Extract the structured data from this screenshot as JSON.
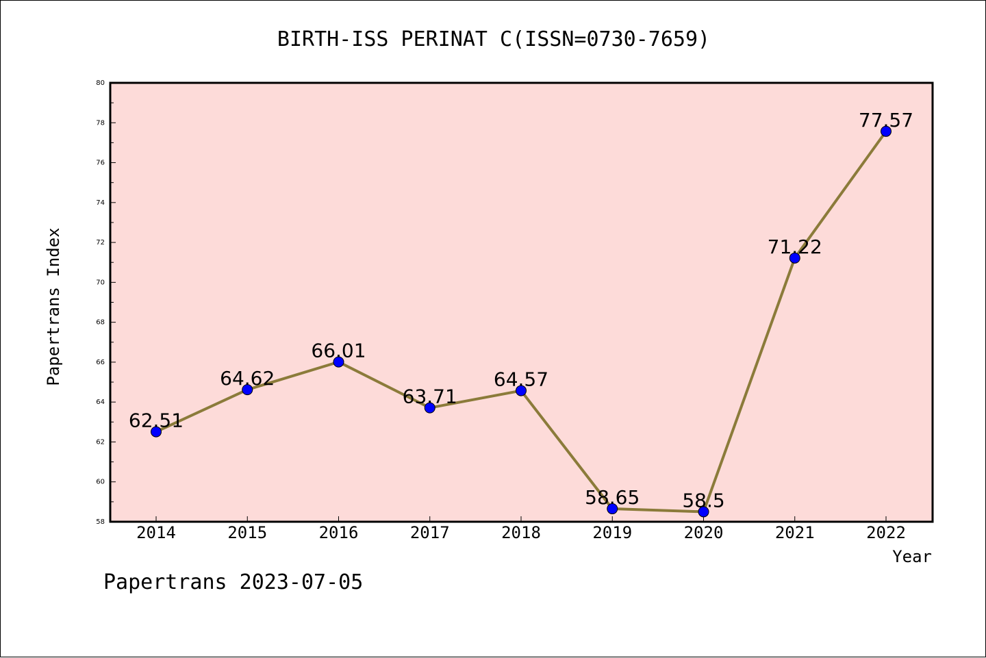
{
  "footer": "Papertrans 2023-07-05",
  "chart_data": {
    "type": "line",
    "title": "BIRTH-ISS PERINAT C(ISSN=0730-7659)",
    "xlabel": "Year",
    "ylabel": "Papertrans Index",
    "categories": [
      "2014",
      "2015",
      "2016",
      "2017",
      "2018",
      "2019",
      "2020",
      "2021",
      "2022"
    ],
    "series": [
      {
        "values": [
          62.51,
          64.62,
          66.01,
          63.71,
          64.57,
          58.65,
          58.5,
          71.22,
          77.57
        ],
        "labels": [
          "62.51",
          "64.62",
          "66.01",
          "63.71",
          "64.57",
          "58.65",
          "58.5",
          "71.22",
          "77.57"
        ]
      }
    ],
    "ylim": [
      58,
      80
    ],
    "yticks": [
      58,
      60,
      62,
      64,
      66,
      68,
      70,
      72,
      74,
      76,
      78,
      80
    ],
    "grid": false,
    "legend": "none",
    "colors": {
      "plot_background": "#fddbd9",
      "line": "#8b7b3a",
      "marker": "#0000ff",
      "axes": "#000000"
    }
  }
}
